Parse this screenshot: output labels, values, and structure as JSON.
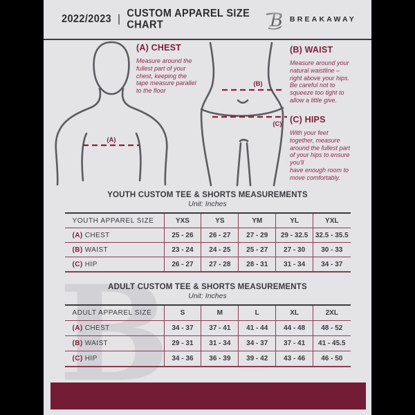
{
  "header": {
    "year": "2022/2023",
    "divider": "|",
    "title": "CUSTOM APPAREL SIZE CHART",
    "brand": "BREAKAWAY",
    "logo_letter": "B"
  },
  "diagram": {
    "chest_label": "(A)",
    "waist_label": "(B)",
    "hips_label": "(C)"
  },
  "instructions": [
    {
      "title": "(A) CHEST",
      "body": "Measure around the\nfullest part of your\nchest, keeping the\ntape measure parallel\nto the floor"
    },
    {
      "title": "(B) WAIST",
      "body": "Measure around your\nnatural waistline –\nright above your hips.\nBe careful not to\nsqueeze too tight to\nallow a little give."
    },
    {
      "title": "(C) HIPS",
      "body": "With your feet\ntogether, measure\naround the fullest part\nof your hips to ensure\nyou'll\nhave enough room to\nmove comfortably."
    }
  ],
  "tables": [
    {
      "title": "YOUTH CUSTOM TEE & SHORTS MEASUREMENTS",
      "unit": "Unit: Inches",
      "header": [
        "YOUTH APPAREL SIZE",
        "YXS",
        "YS",
        "YM",
        "YL",
        "YXL"
      ],
      "rows": [
        {
          "key": "(A)",
          "label": "CHEST",
          "values": [
            "25 - 26",
            "26 - 27",
            "27 - 29",
            "29 - 32.5",
            "32.5 - 35.5"
          ]
        },
        {
          "key": "(B)",
          "label": "WAIST",
          "values": [
            "23 - 24",
            "24 - 25",
            "25 - 27",
            "27 - 30",
            "30 - 33"
          ]
        },
        {
          "key": "(C)",
          "label": "HIP",
          "values": [
            "26 - 27",
            "27 - 28",
            "28 - 31",
            "31 - 34",
            "34 - 37"
          ]
        }
      ]
    },
    {
      "title": "ADULT CUSTOM TEE & SHORTS MEASUREMENTS",
      "unit": "Unit: Inches",
      "header": [
        "ADULT APPAREL SIZE",
        "S",
        "M",
        "L",
        "XL",
        "2XL"
      ],
      "rows": [
        {
          "key": "(A)",
          "label": "CHEST",
          "values": [
            "34 - 37",
            "37 - 41",
            "41 - 44",
            "44 - 48",
            "48 - 52"
          ]
        },
        {
          "key": "(B)",
          "label": "WAIST",
          "values": [
            "29 - 31",
            "31 - 34",
            "34 - 37",
            "37 - 41",
            "41 - 45.5"
          ]
        },
        {
          "key": "(C)",
          "label": "HIP",
          "values": [
            "34 - 36",
            "36 - 39",
            "39 - 42",
            "43 - 46",
            "46 - 50"
          ]
        }
      ]
    }
  ],
  "watermark_letter": "B",
  "colors": {
    "maroon": "#7b1f36",
    "maroon_light": "#8d2944",
    "dark_text": "#3a393d",
    "background": "#e4e3e6",
    "footer_bar": "#721c35",
    "table_line": "#8a3a50",
    "figure_stroke": "#5b5b60"
  }
}
